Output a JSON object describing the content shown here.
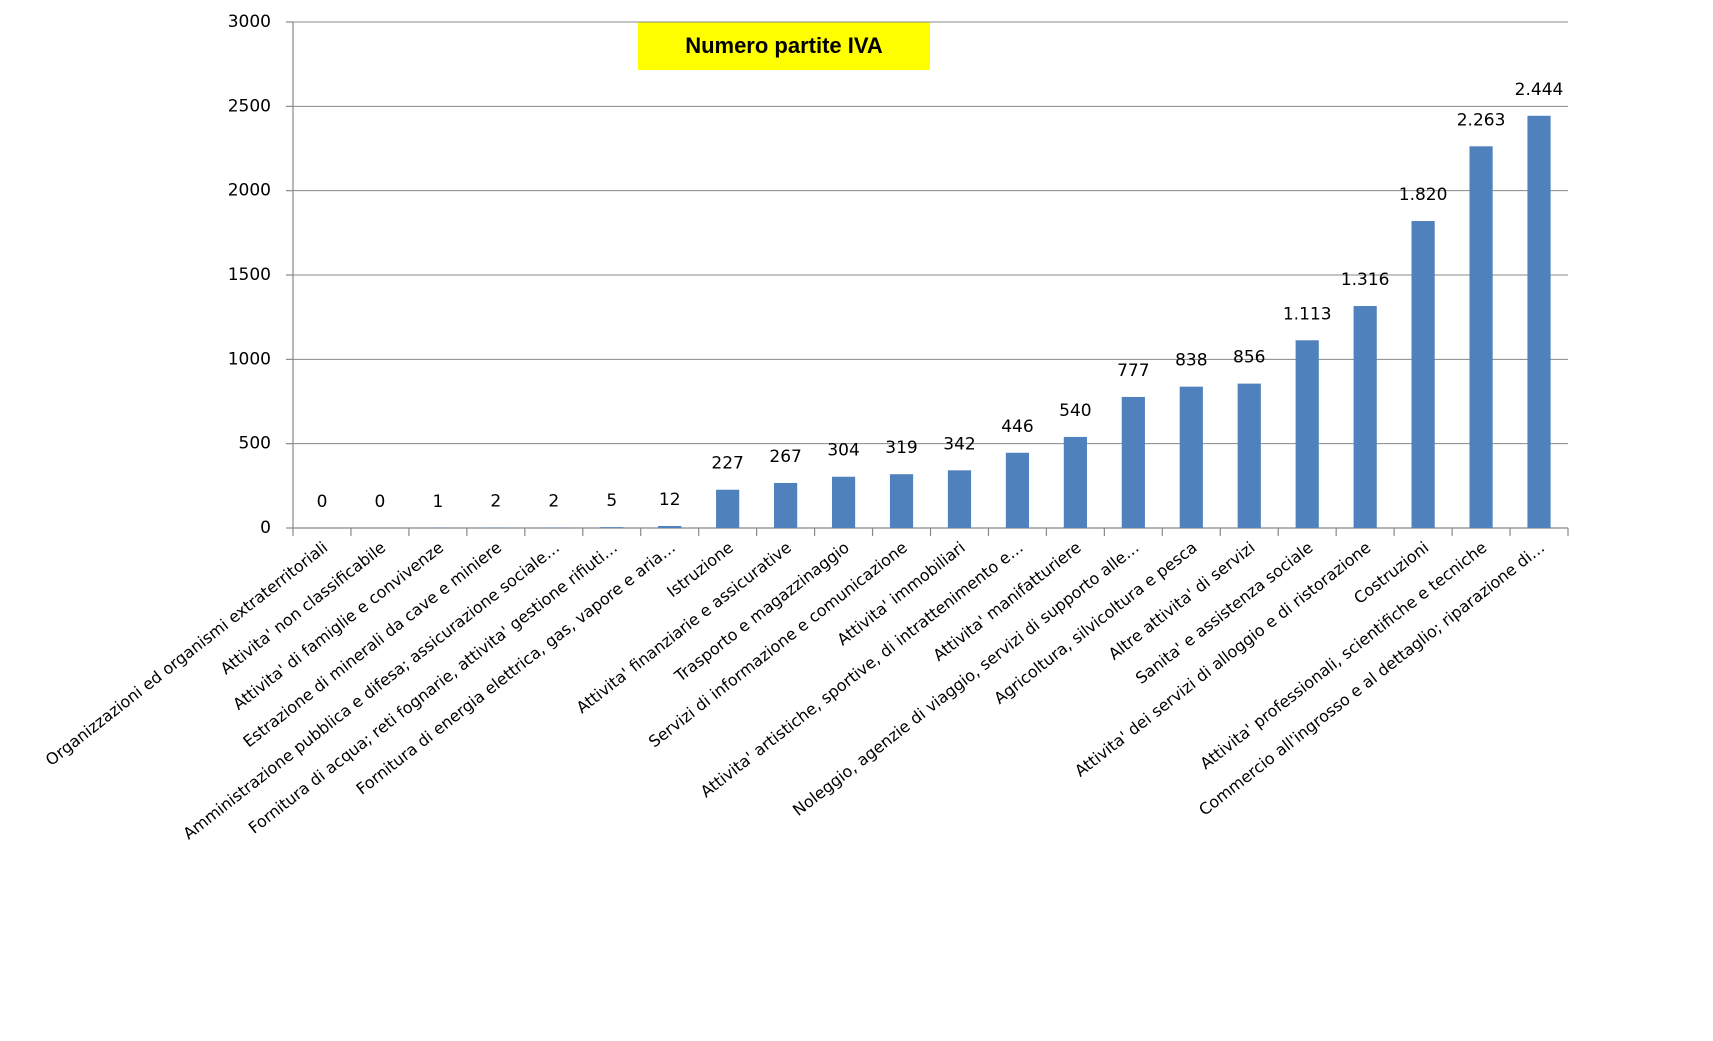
{
  "chart_data": {
    "type": "bar",
    "title": "Numero partite IVA",
    "categories": [
      "Organizzazioni ed organismi extraterritoriali",
      "Attivita' non classificabile",
      "Attivita' di famiglie e convivenze",
      "Estrazione di minerali da cave e miniere",
      "Amministrazione pubblica e difesa; assicurazione sociale…",
      "Fornitura di acqua; reti fognarie, attivita' gestione rifiuti…",
      "Fornitura di energia elettrica, gas, vapore e aria…",
      "Istruzione",
      "Attivita' finanziarie e assicurative",
      "Trasporto e magazzinaggio",
      "Servizi di informazione e comunicazione",
      "Attivita' immobiliari",
      "Attivita' artistiche, sportive, di intrattenimento e…",
      "Attivita' manifatturiere",
      "Noleggio, agenzie di viaggio, servizi di supporto alle…",
      "Agricoltura, silvicoltura e pesca",
      "Altre attivita' di servizi",
      "Sanita' e assistenza sociale",
      "Attivita' dei servizi di alloggio e di ristorazione",
      "Costruzioni",
      "Attivita' professionali, scientifiche e tecniche",
      "Commercio all'ingrosso e al dettaglio; riparazione di…"
    ],
    "values": [
      0,
      0,
      1,
      2,
      2,
      5,
      12,
      227,
      267,
      304,
      319,
      342,
      446,
      540,
      777,
      838,
      856,
      1113,
      1316,
      1820,
      2263,
      2444
    ],
    "value_labels": [
      "0",
      "0",
      "1",
      "2",
      "2",
      "5",
      "12",
      "227",
      "267",
      "304",
      "319",
      "342",
      "446",
      "540",
      "777",
      "838",
      "856",
      "1.113",
      "1.316",
      "1.820",
      "2.263",
      "2.444"
    ],
    "color": "#4f81bd",
    "ylim": [
      0,
      3000
    ],
    "yticks": [
      0,
      500,
      1000,
      1500,
      2000,
      2500,
      3000
    ],
    "grid": true
  }
}
